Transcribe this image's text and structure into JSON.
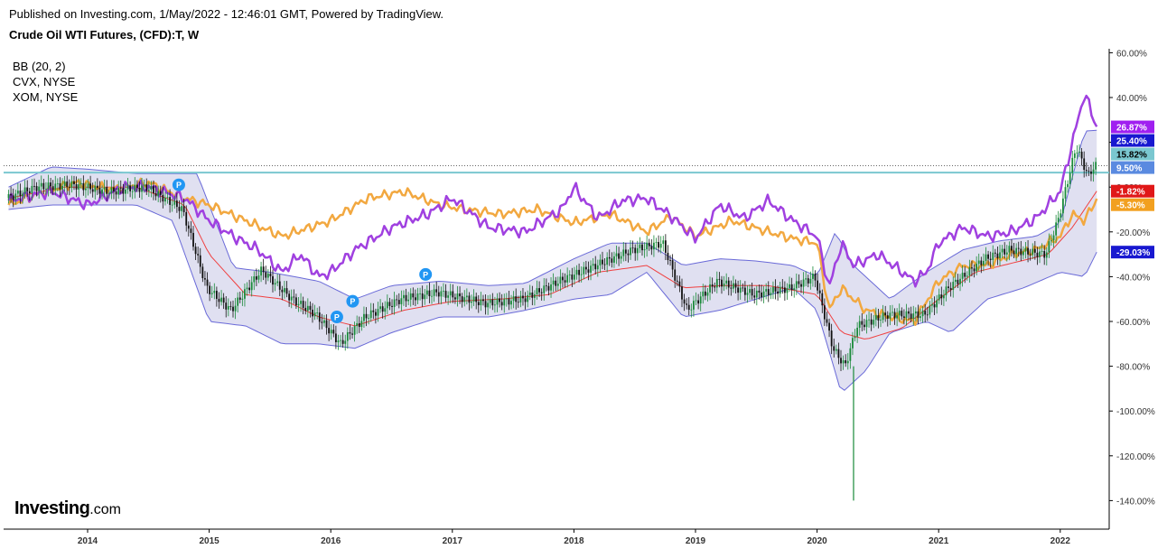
{
  "header": {
    "published": "Published on Investing.com, 1/May/2022 - 12:46:01 GMT, Powered by TradingView."
  },
  "title": "Crude Oil WTI Futures, (CFD):T, W",
  "legend": {
    "items": [
      "BB (20, 2)",
      "CVX, NYSE",
      "XOM, NYSE"
    ]
  },
  "logo": {
    "brand": "Investing",
    "suffix": ".com"
  },
  "colors": {
    "bb_fill": "#d5d5ec",
    "bb_band": "#6a6ad8",
    "bb_mid": "#f04040",
    "cvx": "#a040e0",
    "xom": "#f2a840",
    "candle_up": "#1a8a3a",
    "candle_down": "#111111",
    "hline": "#7ac7d0",
    "marker": "#2196f3"
  },
  "chart_data": {
    "type": "line",
    "title": "Crude Oil WTI Futures, (CFD):T, W",
    "x_ticks": [
      "2014",
      "2015",
      "2016",
      "2017",
      "2018",
      "2019",
      "2020",
      "2021",
      "2022"
    ],
    "y_ticks": [
      "60.00%",
      "40.00%",
      "20.00%",
      "0.00%",
      "-20.00%",
      "-40.00%",
      "-60.00%",
      "-80.00%",
      "-100.00%",
      "-120.00%",
      "-140.00%"
    ],
    "ylim": [
      -142,
      60
    ],
    "xlim": [
      2013.35,
      2022.4
    ],
    "horizontal_line": 6.5,
    "series": [
      {
        "name": "CVX, NYSE",
        "x": [
          2013.35,
          2013.7,
          2014.0,
          2014.3,
          2014.5,
          2014.8,
          2015.0,
          2015.2,
          2015.4,
          2015.6,
          2015.75,
          2015.9,
          2016.0,
          2016.2,
          2016.5,
          2016.8,
          2017.0,
          2017.3,
          2017.6,
          2017.9,
          2018.0,
          2018.2,
          2018.4,
          2018.6,
          2018.8,
          2019.0,
          2019.2,
          2019.4,
          2019.6,
          2019.8,
          2020.0,
          2020.1,
          2020.2,
          2020.3,
          2020.5,
          2020.8,
          2020.9,
          2021.0,
          2021.2,
          2021.4,
          2021.6,
          2021.8,
          2022.0,
          2022.1,
          2022.2,
          2022.3
        ],
        "values": [
          -6,
          -2,
          -8,
          0,
          0,
          -5,
          -15,
          -22,
          -28,
          -38,
          -30,
          -40,
          -38,
          -28,
          -18,
          -12,
          -5,
          -18,
          -20,
          -10,
          0,
          -14,
          -6,
          -5,
          -13,
          -23,
          -8,
          -14,
          -6,
          -15,
          -22,
          -45,
          -25,
          -35,
          -30,
          -42,
          -38,
          -25,
          -18,
          -22,
          -20,
          -14,
          -2,
          20,
          42,
          26.87
        ]
      },
      {
        "name": "XOM, NYSE",
        "x": [
          2013.35,
          2013.6,
          2013.9,
          2014.2,
          2014.5,
          2014.8,
          2015.0,
          2015.3,
          2015.6,
          2016.0,
          2016.3,
          2016.6,
          2016.9,
          2017.1,
          2017.4,
          2017.7,
          2018.0,
          2018.3,
          2018.6,
          2018.8,
          2019.0,
          2019.3,
          2019.6,
          2019.8,
          2020.0,
          2020.1,
          2020.2,
          2020.4,
          2020.6,
          2020.8,
          2021.0,
          2021.2,
          2021.4,
          2021.6,
          2021.8,
          2022.0,
          2022.1,
          2022.2,
          2022.3
        ],
        "values": [
          -8,
          -3,
          2,
          -1,
          2,
          -5,
          -8,
          -15,
          -22,
          -15,
          -5,
          -2,
          -8,
          -10,
          -12,
          -10,
          -16,
          -12,
          -20,
          -13,
          -22,
          -15,
          -20,
          -23,
          -25,
          -55,
          -45,
          -55,
          -58,
          -60,
          -42,
          -35,
          -35,
          -30,
          -28,
          -22,
          -12,
          -15,
          -5.3
        ]
      },
      {
        "name": "BB upper",
        "x": [
          2013.35,
          2013.7,
          2014.0,
          2014.4,
          2014.9,
          2015.2,
          2015.5,
          2015.9,
          2016.2,
          2016.5,
          2016.9,
          2017.3,
          2017.6,
          2018.0,
          2018.3,
          2018.6,
          2018.9,
          2019.2,
          2019.5,
          2019.8,
          2020.0,
          2020.15,
          2020.3,
          2020.6,
          2020.9,
          2021.2,
          2021.5,
          2021.8,
          2022.0,
          2022.2,
          2022.3
        ],
        "values": [
          0,
          9,
          8,
          6,
          6,
          -36,
          -38,
          -42,
          -50,
          -44,
          -42,
          -44,
          -43,
          -32,
          -25,
          -25,
          -35,
          -32,
          -33,
          -35,
          -40,
          -20,
          -35,
          -50,
          -38,
          -28,
          -24,
          -22,
          -16,
          25,
          25.4
        ]
      },
      {
        "name": "BB lower",
        "x": [
          2013.35,
          2013.7,
          2014.0,
          2014.4,
          2014.7,
          2015.0,
          2015.3,
          2015.6,
          2015.9,
          2016.2,
          2016.5,
          2016.9,
          2017.3,
          2017.6,
          2018.0,
          2018.3,
          2018.6,
          2018.9,
          2019.2,
          2019.5,
          2019.8,
          2020.0,
          2020.2,
          2020.4,
          2020.6,
          2020.9,
          2021.1,
          2021.4,
          2021.7,
          2022.0,
          2022.2,
          2022.3
        ],
        "values": [
          -10,
          -8,
          -8,
          -8,
          -15,
          -60,
          -62,
          -70,
          -70,
          -72,
          -65,
          -58,
          -58,
          -55,
          -50,
          -48,
          -38,
          -58,
          -55,
          -50,
          -45,
          -55,
          -92,
          -82,
          -65,
          -60,
          -65,
          -50,
          -45,
          -38,
          -40,
          -29.03
        ]
      },
      {
        "name": "BB basis",
        "x": [
          2013.35,
          2013.8,
          2014.4,
          2014.8,
          2015.0,
          2015.3,
          2015.6,
          2015.9,
          2016.2,
          2016.6,
          2017.0,
          2017.4,
          2017.8,
          2018.2,
          2018.6,
          2018.9,
          2019.2,
          2019.6,
          2020.0,
          2020.2,
          2020.4,
          2020.7,
          2021.0,
          2021.3,
          2021.6,
          2021.9,
          2022.1,
          2022.3
        ],
        "values": [
          -5,
          0,
          0,
          -8,
          -30,
          -48,
          -50,
          -58,
          -62,
          -55,
          -51,
          -50,
          -48,
          -38,
          -35,
          -45,
          -44,
          -44,
          -48,
          -65,
          -68,
          -63,
          -50,
          -38,
          -34,
          -30,
          -18,
          -1.82
        ]
      },
      {
        "name": "Crude Oil close",
        "x": [
          2013.35,
          2013.6,
          2013.9,
          2014.2,
          2014.5,
          2014.8,
          2015.0,
          2015.2,
          2015.45,
          2015.7,
          2015.9,
          2016.1,
          2016.3,
          2016.6,
          2016.9,
          2017.3,
          2017.6,
          2017.9,
          2018.2,
          2018.5,
          2018.75,
          2018.95,
          2019.2,
          2019.5,
          2019.8,
          2020.0,
          2020.15,
          2020.25,
          2020.35,
          2020.6,
          2020.9,
          2021.1,
          2021.4,
          2021.6,
          2021.9,
          2022.0,
          2022.15,
          2022.25,
          2022.3
        ],
        "values": [
          -5,
          0,
          1,
          -2,
          0,
          -10,
          -45,
          -55,
          -37,
          -50,
          -57,
          -70,
          -58,
          -50,
          -47,
          -52,
          -50,
          -42,
          -35,
          -28,
          -25,
          -55,
          -42,
          -48,
          -45,
          -40,
          -72,
          -80,
          -62,
          -57,
          -57,
          -45,
          -32,
          -28,
          -30,
          -15,
          18,
          5,
          9.5
        ]
      }
    ],
    "candle_low_spike": {
      "x": 2020.3,
      "low": -140
    },
    "markers": [
      {
        "x": 2014.75,
        "y": 1,
        "label": "P"
      },
      {
        "x": 2016.05,
        "y": -58,
        "label": "P"
      },
      {
        "x": 2016.18,
        "y": -51,
        "label": "P"
      },
      {
        "x": 2016.78,
        "y": -39,
        "label": "P"
      }
    ],
    "price_labels": [
      {
        "value": 26.87,
        "text": "26.87%",
        "color": "#a020f0",
        "text_color": "#ffffff"
      },
      {
        "value": 25.4,
        "text": "25.40%",
        "color": "#1818d0",
        "text_color": "#ffffff"
      },
      {
        "value": 15.82,
        "text": "15.82%",
        "color": "#7ac7d0",
        "text_color": "#000000"
      },
      {
        "value": 9.5,
        "text": "9.50%",
        "color": "#5a8ae0",
        "text_color": "#ffffff"
      },
      {
        "value": -1.82,
        "text": "-1.82%",
        "color": "#e01818",
        "text_color": "#ffffff"
      },
      {
        "value": -5.3,
        "text": "-5.30%",
        "color": "#f2a020",
        "text_color": "#ffffff"
      },
      {
        "value": -29.03,
        "text": "-29.03%",
        "color": "#1818d0",
        "text_color": "#ffffff"
      }
    ]
  }
}
